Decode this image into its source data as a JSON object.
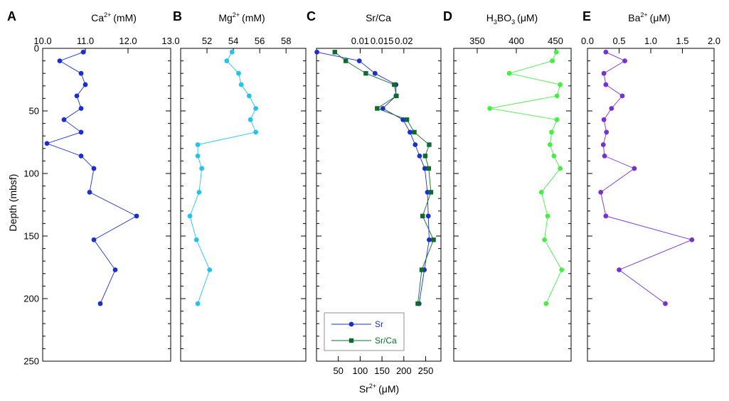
{
  "chart_data": [
    {
      "type": "line",
      "panel_letter": "A",
      "title": "Ca",
      "title_sup": "2+",
      "title_unit": "(mM)",
      "xlim": [
        10.0,
        13.0
      ],
      "xticks": [
        "10.0",
        "11.0",
        "12.0",
        "13.0"
      ],
      "xtick_values": [
        10,
        11,
        12,
        13
      ],
      "ylabel": "Depth (mbsf)",
      "ylim": [
        0,
        250
      ],
      "yticks": [
        0,
        50,
        100,
        150,
        200,
        250
      ],
      "series": [
        {
          "color": "#1a2fcc",
          "marker": "circle",
          "points": [
            {
              "x": 10.95,
              "y": 3
            },
            {
              "x": 10.4,
              "y": 10
            },
            {
              "x": 10.9,
              "y": 20
            },
            {
              "x": 11.0,
              "y": 29
            },
            {
              "x": 10.8,
              "y": 38
            },
            {
              "x": 10.9,
              "y": 48
            },
            {
              "x": 10.5,
              "y": 57
            },
            {
              "x": 10.9,
              "y": 67
            },
            {
              "x": 10.1,
              "y": 76
            },
            {
              "x": 10.9,
              "y": 86
            },
            {
              "x": 11.2,
              "y": 96
            },
            {
              "x": 11.1,
              "y": 115
            },
            {
              "x": 12.2,
              "y": 134
            },
            {
              "x": 11.2,
              "y": 153
            },
            {
              "x": 11.7,
              "y": 177
            },
            {
              "x": 11.35,
              "y": 204
            }
          ]
        }
      ]
    },
    {
      "type": "line",
      "panel_letter": "B",
      "title": "Mg",
      "title_sup": "2+",
      "title_unit": "(mM)",
      "xlim": [
        50,
        59.5
      ],
      "xticks": [
        "52",
        "54",
        "56",
        "58"
      ],
      "xtick_values": [
        52,
        54,
        56,
        58
      ],
      "ylim": [
        0,
        250
      ],
      "series": [
        {
          "color": "#22c4ec",
          "marker": "circle",
          "points": [
            {
              "x": 53.9,
              "y": 3
            },
            {
              "x": 53.5,
              "y": 10
            },
            {
              "x": 54.4,
              "y": 20
            },
            {
              "x": 54.6,
              "y": 29
            },
            {
              "x": 55.2,
              "y": 38
            },
            {
              "x": 55.7,
              "y": 48
            },
            {
              "x": 55.3,
              "y": 57
            },
            {
              "x": 55.7,
              "y": 67
            },
            {
              "x": 51.3,
              "y": 77
            },
            {
              "x": 51.3,
              "y": 86
            },
            {
              "x": 51.6,
              "y": 96
            },
            {
              "x": 51.4,
              "y": 115
            },
            {
              "x": 50.7,
              "y": 134
            },
            {
              "x": 51.2,
              "y": 153
            },
            {
              "x": 52.2,
              "y": 177
            },
            {
              "x": 51.3,
              "y": 204
            }
          ]
        }
      ]
    },
    {
      "type": "line",
      "panel_letter": "C",
      "title": "Sr/Ca",
      "xlim_top": [
        0.0,
        0.0285
      ],
      "xticks_top": [
        "0.01",
        "0.015",
        "0.02"
      ],
      "xtick_values_top": [
        0.01,
        0.015,
        0.02
      ],
      "xlabel_bottom": "Sr",
      "xlabel_bottom_sup": "2+",
      "xlabel_bottom_unit": "(μM)",
      "xlim_bottom": [
        0,
        285
      ],
      "xticks_bottom": [
        "50",
        "100",
        "150",
        "200",
        "250"
      ],
      "xtick_values_bottom": [
        50,
        100,
        150,
        200,
        250
      ],
      "ylim": [
        0,
        250
      ],
      "legend": [
        {
          "label": "Sr",
          "color": "#1a2fcc",
          "marker": "circle"
        },
        {
          "label": "Sr/Ca",
          "color": "#0d6b2e",
          "marker": "square"
        }
      ],
      "series": [
        {
          "name": "Sr",
          "axis": "bottom",
          "color": "#1a2fcc",
          "marker": "circle",
          "points": [
            {
              "x": 1,
              "y": 3
            },
            {
              "x": 98,
              "y": 10
            },
            {
              "x": 134,
              "y": 20
            },
            {
              "x": 182,
              "y": 29
            },
            {
              "x": 182,
              "y": 38
            },
            {
              "x": 152,
              "y": 48
            },
            {
              "x": 198,
              "y": 57
            },
            {
              "x": 214,
              "y": 67
            },
            {
              "x": 226,
              "y": 77
            },
            {
              "x": 236,
              "y": 86
            },
            {
              "x": 248,
              "y": 96
            },
            {
              "x": 254,
              "y": 115
            },
            {
              "x": 256,
              "y": 134
            },
            {
              "x": 258,
              "y": 153
            },
            {
              "x": 247,
              "y": 177
            },
            {
              "x": 235,
              "y": 204
            }
          ]
        },
        {
          "name": "Sr/Ca",
          "axis": "top",
          "color": "#0d6b2e",
          "marker": "square",
          "points": [
            {
              "x": 0.0042,
              "y": 3
            },
            {
              "x": 0.0067,
              "y": 10
            },
            {
              "x": 0.0113,
              "y": 20
            },
            {
              "x": 0.0178,
              "y": 29
            },
            {
              "x": 0.0183,
              "y": 38
            },
            {
              "x": 0.0139,
              "y": 48
            },
            {
              "x": 0.0207,
              "y": 57
            },
            {
              "x": 0.0224,
              "y": 67
            },
            {
              "x": 0.0258,
              "y": 77
            },
            {
              "x": 0.0249,
              "y": 86
            },
            {
              "x": 0.0257,
              "y": 96
            },
            {
              "x": 0.0262,
              "y": 115
            },
            {
              "x": 0.0243,
              "y": 134
            },
            {
              "x": 0.0268,
              "y": 153
            },
            {
              "x": 0.0241,
              "y": 177
            },
            {
              "x": 0.0232,
              "y": 204
            }
          ]
        }
      ]
    },
    {
      "type": "line",
      "panel_letter": "D",
      "title": "H",
      "title_sub1": "3",
      "title_mid": "BO",
      "title_sub2": "3",
      "title_unit": "(μM)",
      "xlim": [
        320,
        470
      ],
      "xticks": [
        "350",
        "400",
        "450"
      ],
      "xtick_values": [
        350,
        400,
        450
      ],
      "ylim": [
        0,
        250
      ],
      "series": [
        {
          "color": "#44ee44",
          "marker": "circle",
          "points": [
            {
              "x": 451,
              "y": 3
            },
            {
              "x": 446,
              "y": 10
            },
            {
              "x": 391,
              "y": 20
            },
            {
              "x": 456,
              "y": 29
            },
            {
              "x": 452,
              "y": 38
            },
            {
              "x": 366,
              "y": 48
            },
            {
              "x": 452,
              "y": 57
            },
            {
              "x": 445,
              "y": 67
            },
            {
              "x": 443,
              "y": 77
            },
            {
              "x": 448,
              "y": 86
            },
            {
              "x": 456,
              "y": 96
            },
            {
              "x": 432,
              "y": 115
            },
            {
              "x": 440,
              "y": 134
            },
            {
              "x": 436,
              "y": 153
            },
            {
              "x": 458,
              "y": 177
            },
            {
              "x": 438,
              "y": 204
            }
          ]
        }
      ]
    },
    {
      "type": "line",
      "panel_letter": "E",
      "title": "Ba",
      "title_sup": "2+",
      "title_unit": "(μM)",
      "xlim": [
        0.0,
        2.0
      ],
      "xticks": [
        "0.0",
        "0.5",
        "1.0",
        "1.5",
        "2.0"
      ],
      "xtick_values": [
        0,
        0.5,
        1.0,
        1.5,
        2.0
      ],
      "ylim": [
        0,
        250
      ],
      "series": [
        {
          "color": "#7a2fd0",
          "marker": "circle",
          "points": [
            {
              "x": 0.29,
              "y": 3
            },
            {
              "x": 0.59,
              "y": 10
            },
            {
              "x": 0.26,
              "y": 20
            },
            {
              "x": 0.29,
              "y": 29
            },
            {
              "x": 0.55,
              "y": 38
            },
            {
              "x": 0.38,
              "y": 48
            },
            {
              "x": 0.26,
              "y": 57
            },
            {
              "x": 0.3,
              "y": 67
            },
            {
              "x": 0.25,
              "y": 77
            },
            {
              "x": 0.27,
              "y": 86
            },
            {
              "x": 0.74,
              "y": 96
            },
            {
              "x": 0.21,
              "y": 115
            },
            {
              "x": 0.29,
              "y": 134
            },
            {
              "x": 1.65,
              "y": 153
            },
            {
              "x": 0.5,
              "y": 177
            },
            {
              "x": 1.23,
              "y": 204
            }
          ]
        }
      ]
    }
  ]
}
